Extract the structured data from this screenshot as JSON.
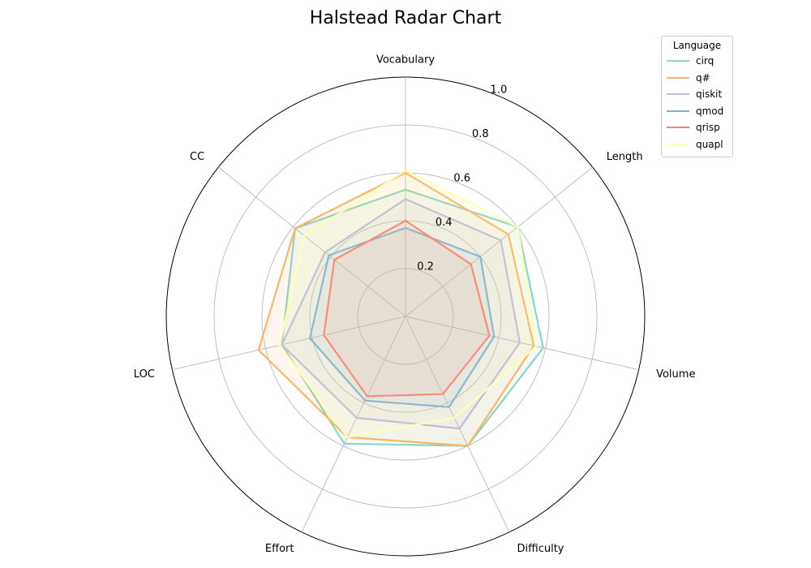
{
  "chart_data": {
    "type": "radar",
    "title": "Halstead Radar Chart",
    "axes": [
      "Vocabulary",
      "Length",
      "Volume",
      "Difficulty",
      "Effort",
      "LOC",
      "CC"
    ],
    "rlim": [
      0,
      1.0
    ],
    "r_ticks": [
      "0.2",
      "0.4",
      "0.6",
      "0.8",
      "1.0"
    ],
    "r_tick_values": [
      0.2,
      0.4,
      0.6,
      0.8,
      1.0
    ],
    "grid": true,
    "legend": {
      "title": "Language",
      "placement": "top-right"
    },
    "series": [
      {
        "name": "cirq",
        "color": "#8dd3c7",
        "values": [
          0.53,
          0.6,
          0.59,
          0.6,
          0.59,
          0.53,
          0.59
        ]
      },
      {
        "name": "q#",
        "color": "#fdb462",
        "values": [
          0.6,
          0.55,
          0.55,
          0.6,
          0.56,
          0.63,
          0.59
        ]
      },
      {
        "name": "qiskit",
        "color": "#bebada",
        "values": [
          0.49,
          0.51,
          0.49,
          0.52,
          0.47,
          0.53,
          0.43
        ]
      },
      {
        "name": "qmod",
        "color": "#80b1d3",
        "values": [
          0.37,
          0.4,
          0.38,
          0.42,
          0.39,
          0.41,
          0.41
        ]
      },
      {
        "name": "qrisp",
        "color": "#fb8072",
        "values": [
          0.4,
          0.35,
          0.36,
          0.36,
          0.37,
          0.35,
          0.38
        ]
      },
      {
        "name": "quapl",
        "color": "#ffffb3",
        "values": [
          0.61,
          0.6,
          0.56,
          0.47,
          0.56,
          0.54,
          0.54
        ]
      }
    ]
  }
}
